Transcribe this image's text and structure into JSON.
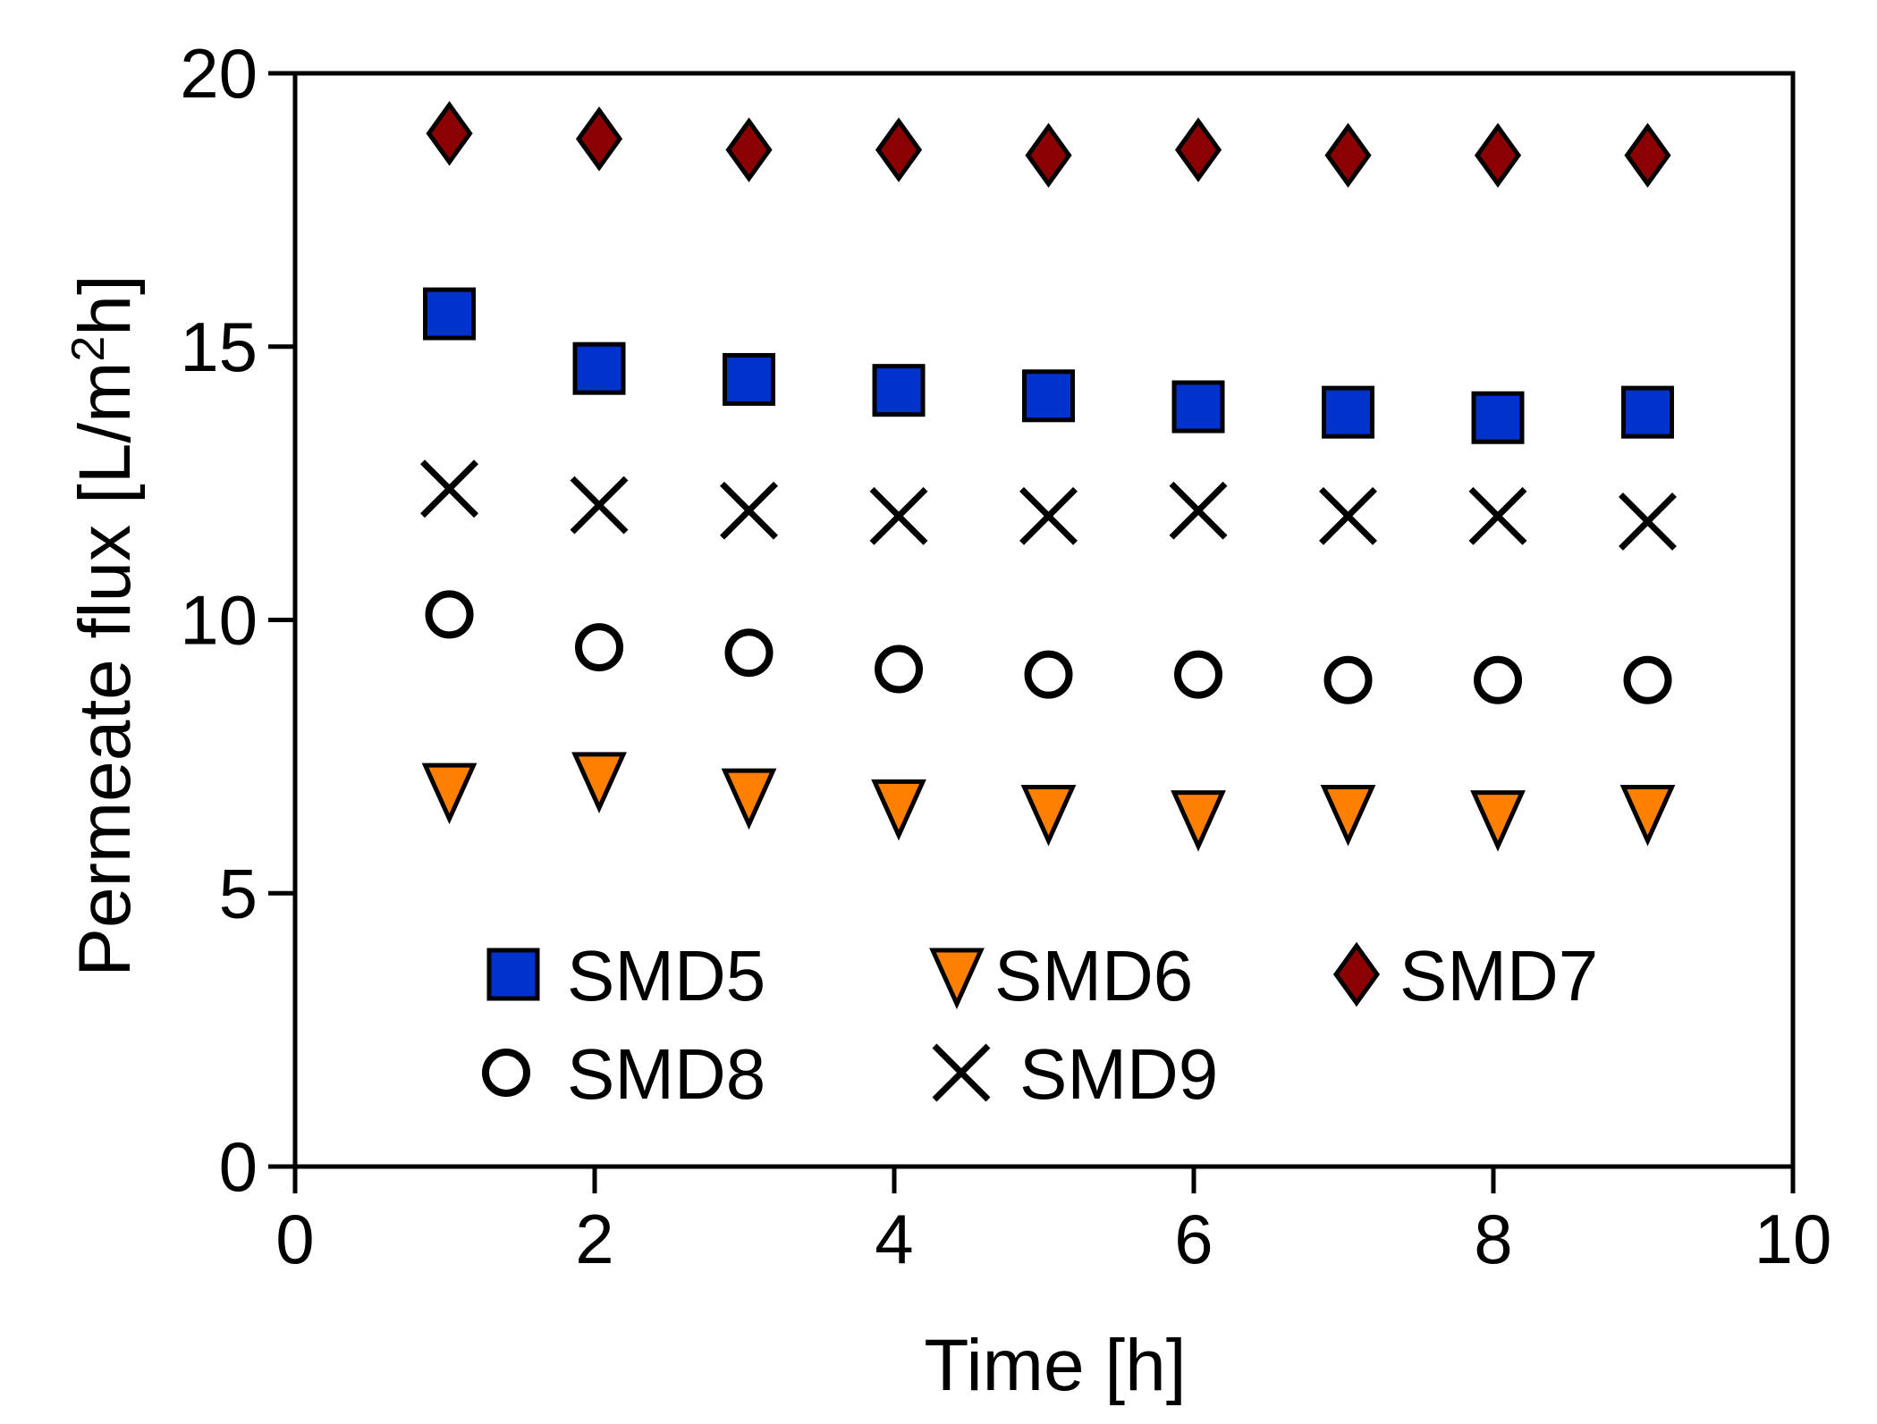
{
  "chart_data": {
    "type": "scatter",
    "title": "",
    "xlabel": "Time [h]",
    "ylabel_parts": [
      "Permeate flux [L/m",
      "2",
      "h]"
    ],
    "xlim": [
      0,
      10
    ],
    "ylim": [
      0,
      20
    ],
    "x_ticks": [
      "0",
      "2",
      "4",
      "6",
      "8",
      "10"
    ],
    "y_ticks": [
      "0",
      "5",
      "10",
      "15",
      "20"
    ],
    "grid": false,
    "legend_position": "bottom-left, inside plot",
    "x": [
      1,
      2,
      3,
      4,
      5,
      6,
      7,
      8,
      9
    ],
    "series": [
      {
        "name": "SMD5",
        "marker": "square",
        "color": "#0033cc",
        "values": [
          15.6,
          14.6,
          14.4,
          14.2,
          14.1,
          13.9,
          13.8,
          13.7,
          13.8
        ]
      },
      {
        "name": "SMD6",
        "marker": "triangle-down",
        "color": "#ff8000",
        "values": [
          6.9,
          7.1,
          6.8,
          6.6,
          6.5,
          6.4,
          6.5,
          6.4,
          6.5
        ]
      },
      {
        "name": "SMD7",
        "marker": "diamond",
        "color": "#8b0000",
        "values": [
          18.9,
          18.8,
          18.6,
          18.6,
          18.5,
          18.6,
          18.5,
          18.5,
          18.5
        ]
      },
      {
        "name": "SMD8",
        "marker": "circle",
        "color": "#ffffff",
        "values": [
          10.1,
          9.5,
          9.4,
          9.1,
          9.0,
          9.0,
          8.9,
          8.9,
          8.9
        ]
      },
      {
        "name": "SMD9",
        "marker": "x",
        "color": "#000000",
        "values": [
          12.4,
          12.1,
          12.0,
          11.9,
          11.9,
          12.0,
          11.9,
          11.9,
          11.8
        ]
      }
    ]
  }
}
